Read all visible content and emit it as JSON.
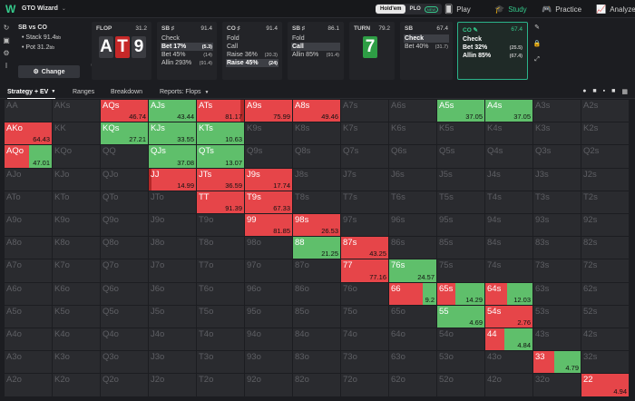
{
  "app": {
    "name": "GTO Wizard",
    "caret": "⌄"
  },
  "modes": {
    "holdem": "Hold'em",
    "plo": "PLO",
    "new_badge": "NEW"
  },
  "nav": [
    {
      "label": "Play",
      "icon": "play-icon",
      "glyph": "🂠"
    },
    {
      "label": "Study",
      "icon": "study-icon",
      "glyph": "🎓"
    },
    {
      "label": "Practice",
      "icon": "practice-icon",
      "glyph": "🎮"
    },
    {
      "label": "Analyze",
      "icon": "analyze-icon",
      "glyph": "📈"
    }
  ],
  "spot": {
    "title": "SB vs CO",
    "stack": "• Stack 91.4",
    "stack_unit": "bb",
    "pot": "• Pot 31.2",
    "pot_unit": "bb",
    "change": "Change"
  },
  "nodes": [
    {
      "header": "FLOP",
      "value": "31.2"
    },
    {
      "header": "SB ♯",
      "value": "91.4",
      "options": [
        {
          "label": "Check",
          "value": ""
        },
        {
          "label": "Bet 17%",
          "value": "(5.3)"
        },
        {
          "label": "Bet 45%",
          "value": "(14)"
        },
        {
          "label": "Allin 293%",
          "value": "(91.4)"
        }
      ]
    },
    {
      "header": "CO ♯",
      "value": "91.4",
      "options": [
        {
          "label": "Fold",
          "value": ""
        },
        {
          "label": "Call",
          "value": ""
        },
        {
          "label": "Raise 36%",
          "value": "(20.3)"
        },
        {
          "label": "Raise 45%",
          "value": "(24)"
        }
      ]
    },
    {
      "header": "SB ♯",
      "value": "86.1",
      "options": [
        {
          "label": "Fold",
          "value": ""
        },
        {
          "label": "Call",
          "value": ""
        },
        {
          "label": "Allin 85%",
          "value": "(91.4)"
        }
      ]
    },
    {
      "header": "TURN",
      "value": "79.2"
    },
    {
      "header": "SB",
      "value": "67.4",
      "options": [
        {
          "label": "Check",
          "value": ""
        },
        {
          "label": "Bet 40%",
          "value": "(31.7)"
        }
      ]
    },
    {
      "header": "CO ✎",
      "value": "67.4",
      "options": [
        {
          "label": "Check",
          "value": ""
        },
        {
          "label": "Bet 32%",
          "value": "(25.5)"
        },
        {
          "label": "Allin 85%",
          "value": "(67.4)"
        }
      ]
    }
  ],
  "board": {
    "flop": [
      "A",
      "T",
      "9"
    ],
    "turn": "7"
  },
  "tabs": {
    "strategy": "Strategy + EV",
    "ranges": "Ranges",
    "breakdown": "Breakdown",
    "reports": "Reports: Flops"
  },
  "colors": {
    "accent": "#35c98b",
    "fold": "#5fbf6b",
    "raise": "#e64549",
    "allin": "#b42828",
    "empty": "#2a2b2f"
  },
  "ranks": [
    "A",
    "K",
    "Q",
    "J",
    "T",
    "9",
    "8",
    "7",
    "6",
    "5",
    "4",
    "3",
    "2"
  ],
  "grid": [
    [
      {
        "h": "AA"
      },
      {
        "h": "AKs"
      },
      {
        "h": "AQs",
        "ev": "46.74",
        "mix": [
          [
            0,
            100,
            "red"
          ]
        ]
      },
      {
        "h": "AJs",
        "ev": "43.44",
        "mix": [
          [
            0,
            100,
            "green"
          ]
        ]
      },
      {
        "h": "ATs",
        "ev": "81.17",
        "mix": [
          [
            0,
            92,
            "red"
          ],
          [
            92,
            100,
            "dred"
          ]
        ]
      },
      {
        "h": "A9s",
        "ev": "75.99",
        "mix": [
          [
            0,
            100,
            "red"
          ]
        ]
      },
      {
        "h": "A8s",
        "ev": "49.46",
        "mix": [
          [
            0,
            100,
            "red"
          ]
        ]
      },
      {
        "h": "A7s"
      },
      {
        "h": "A6s"
      },
      {
        "h": "A5s",
        "ev": "37.05",
        "mix": [
          [
            0,
            100,
            "green"
          ]
        ]
      },
      {
        "h": "A4s",
        "ev": "37.05",
        "mix": [
          [
            0,
            100,
            "green"
          ]
        ]
      },
      {
        "h": "A3s"
      },
      {
        "h": "A2s"
      }
    ],
    [
      {
        "h": "AKo",
        "ev": "64.43",
        "mix": [
          [
            0,
            100,
            "red"
          ]
        ]
      },
      {
        "h": "KK"
      },
      {
        "h": "KQs",
        "ev": "27.21",
        "mix": [
          [
            0,
            100,
            "green"
          ]
        ]
      },
      {
        "h": "KJs",
        "ev": "33.55",
        "mix": [
          [
            0,
            100,
            "green"
          ]
        ]
      },
      {
        "h": "KTs",
        "ev": "10.63",
        "mix": [
          [
            0,
            100,
            "green"
          ]
        ]
      },
      {
        "h": "K9s"
      },
      {
        "h": "K8s"
      },
      {
        "h": "K7s"
      },
      {
        "h": "K6s"
      },
      {
        "h": "K5s"
      },
      {
        "h": "K4s"
      },
      {
        "h": "K3s"
      },
      {
        "h": "K2s"
      }
    ],
    [
      {
        "h": "AQo",
        "ev": "47.01",
        "mix": [
          [
            0,
            52,
            "red"
          ],
          [
            52,
            100,
            "green"
          ]
        ]
      },
      {
        "h": "KQo"
      },
      {
        "h": "QQ"
      },
      {
        "h": "QJs",
        "ev": "37.08",
        "mix": [
          [
            0,
            100,
            "green"
          ]
        ]
      },
      {
        "h": "QTs",
        "ev": "13.07",
        "mix": [
          [
            0,
            100,
            "green"
          ]
        ]
      },
      {
        "h": "Q9s"
      },
      {
        "h": "Q8s"
      },
      {
        "h": "Q7s"
      },
      {
        "h": "Q6s"
      },
      {
        "h": "Q5s"
      },
      {
        "h": "Q4s"
      },
      {
        "h": "Q3s"
      },
      {
        "h": "Q2s"
      }
    ],
    [
      {
        "h": "AJo"
      },
      {
        "h": "KJo"
      },
      {
        "h": "QJo"
      },
      {
        "h": "JJ",
        "ev": "14.99",
        "mix": [
          [
            0,
            6,
            "dred"
          ],
          [
            6,
            100,
            "red"
          ]
        ]
      },
      {
        "h": "JTs",
        "ev": "36.59",
        "mix": [
          [
            0,
            100,
            "red"
          ]
        ]
      },
      {
        "h": "J9s",
        "ev": "17.74",
        "mix": [
          [
            0,
            100,
            "red"
          ]
        ]
      },
      {
        "h": "J8s"
      },
      {
        "h": "J7s"
      },
      {
        "h": "J6s"
      },
      {
        "h": "J5s"
      },
      {
        "h": "J4s"
      },
      {
        "h": "J3s"
      },
      {
        "h": "J2s"
      }
    ],
    [
      {
        "h": "ATo"
      },
      {
        "h": "KTo"
      },
      {
        "h": "QTo"
      },
      {
        "h": "JTo"
      },
      {
        "h": "TT",
        "ev": "91.39",
        "mix": [
          [
            0,
            100,
            "red"
          ]
        ]
      },
      {
        "h": "T9s",
        "ev": "67.33",
        "mix": [
          [
            0,
            100,
            "red"
          ]
        ]
      },
      {
        "h": "T8s"
      },
      {
        "h": "T7s"
      },
      {
        "h": "T6s"
      },
      {
        "h": "T5s"
      },
      {
        "h": "T4s"
      },
      {
        "h": "T3s"
      },
      {
        "h": "T2s"
      }
    ],
    [
      {
        "h": "A9o"
      },
      {
        "h": "K9o"
      },
      {
        "h": "Q9o"
      },
      {
        "h": "J9o"
      },
      {
        "h": "T9o"
      },
      {
        "h": "99",
        "ev": "81.85",
        "mix": [
          [
            0,
            100,
            "red"
          ]
        ]
      },
      {
        "h": "98s",
        "ev": "26.53",
        "mix": [
          [
            0,
            100,
            "red"
          ]
        ]
      },
      {
        "h": "97s"
      },
      {
        "h": "96s"
      },
      {
        "h": "95s"
      },
      {
        "h": "94s"
      },
      {
        "h": "93s"
      },
      {
        "h": "92s"
      }
    ],
    [
      {
        "h": "A8o"
      },
      {
        "h": "K8o"
      },
      {
        "h": "Q8o"
      },
      {
        "h": "J8o"
      },
      {
        "h": "T8o"
      },
      {
        "h": "98o"
      },
      {
        "h": "88",
        "ev": "21.25",
        "mix": [
          [
            0,
            100,
            "green"
          ]
        ]
      },
      {
        "h": "87s",
        "ev": "43.25",
        "mix": [
          [
            0,
            100,
            "red"
          ]
        ]
      },
      {
        "h": "86s"
      },
      {
        "h": "85s"
      },
      {
        "h": "84s"
      },
      {
        "h": "83s"
      },
      {
        "h": "82s"
      }
    ],
    [
      {
        "h": "A7o"
      },
      {
        "h": "K7o"
      },
      {
        "h": "Q7o"
      },
      {
        "h": "J7o"
      },
      {
        "h": "T7o"
      },
      {
        "h": "97o"
      },
      {
        "h": "87o"
      },
      {
        "h": "77",
        "ev": "77.16",
        "mix": [
          [
            0,
            100,
            "red"
          ]
        ]
      },
      {
        "h": "76s",
        "ev": "24.57",
        "mix": [
          [
            0,
            100,
            "green"
          ]
        ]
      },
      {
        "h": "75s"
      },
      {
        "h": "74s"
      },
      {
        "h": "73s"
      },
      {
        "h": "72s"
      }
    ],
    [
      {
        "h": "A6o"
      },
      {
        "h": "K6o"
      },
      {
        "h": "Q6o"
      },
      {
        "h": "J6o"
      },
      {
        "h": "T6o"
      },
      {
        "h": "96o"
      },
      {
        "h": "86o"
      },
      {
        "h": "76o"
      },
      {
        "h": "66",
        "ev": "9.2",
        "mix": [
          [
            0,
            72,
            "red"
          ],
          [
            72,
            100,
            "green"
          ]
        ]
      },
      {
        "h": "65s",
        "ev": "14.29",
        "mix": [
          [
            0,
            38,
            "red"
          ],
          [
            38,
            100,
            "green"
          ]
        ]
      },
      {
        "h": "64s",
        "ev": "12.03",
        "mix": [
          [
            0,
            46,
            "red"
          ],
          [
            46,
            100,
            "green"
          ]
        ]
      },
      {
        "h": "63s"
      },
      {
        "h": "62s"
      }
    ],
    [
      {
        "h": "A5o"
      },
      {
        "h": "K5o"
      },
      {
        "h": "Q5o"
      },
      {
        "h": "J5o"
      },
      {
        "h": "T5o"
      },
      {
        "h": "95o"
      },
      {
        "h": "85o"
      },
      {
        "h": "75o"
      },
      {
        "h": "65o"
      },
      {
        "h": "55",
        "ev": "4.69",
        "mix": [
          [
            0,
            100,
            "green"
          ]
        ]
      },
      {
        "h": "54s",
        "ev": "2.76",
        "mix": [
          [
            0,
            100,
            "red"
          ]
        ]
      },
      {
        "h": "53s"
      },
      {
        "h": "52s"
      }
    ],
    [
      {
        "h": "A4o"
      },
      {
        "h": "K4o"
      },
      {
        "h": "Q4o"
      },
      {
        "h": "J4o"
      },
      {
        "h": "T4o"
      },
      {
        "h": "94o"
      },
      {
        "h": "84o"
      },
      {
        "h": "74o"
      },
      {
        "h": "64o"
      },
      {
        "h": "54o"
      },
      {
        "h": "44",
        "ev": "4.84",
        "mix": [
          [
            0,
            40,
            "red"
          ],
          [
            40,
            100,
            "green"
          ]
        ]
      },
      {
        "h": "43s"
      },
      {
        "h": "42s"
      }
    ],
    [
      {
        "h": "A3o"
      },
      {
        "h": "K3o"
      },
      {
        "h": "Q3o"
      },
      {
        "h": "J3o"
      },
      {
        "h": "T3o"
      },
      {
        "h": "93o"
      },
      {
        "h": "83o"
      },
      {
        "h": "73o"
      },
      {
        "h": "63o"
      },
      {
        "h": "53o"
      },
      {
        "h": "43o"
      },
      {
        "h": "33",
        "ev": "4.79",
        "mix": [
          [
            0,
            44,
            "red"
          ],
          [
            44,
            100,
            "green"
          ]
        ]
      },
      {
        "h": "32s"
      }
    ],
    [
      {
        "h": "A2o"
      },
      {
        "h": "K2o"
      },
      {
        "h": "Q2o"
      },
      {
        "h": "J2o"
      },
      {
        "h": "T2o"
      },
      {
        "h": "92o"
      },
      {
        "h": "82o"
      },
      {
        "h": "72o"
      },
      {
        "h": "62o"
      },
      {
        "h": "52o"
      },
      {
        "h": "42o"
      },
      {
        "h": "32o"
      },
      {
        "h": "22",
        "ev": "4.94",
        "mix": [
          [
            0,
            100,
            "red"
          ]
        ]
      }
    ]
  ]
}
